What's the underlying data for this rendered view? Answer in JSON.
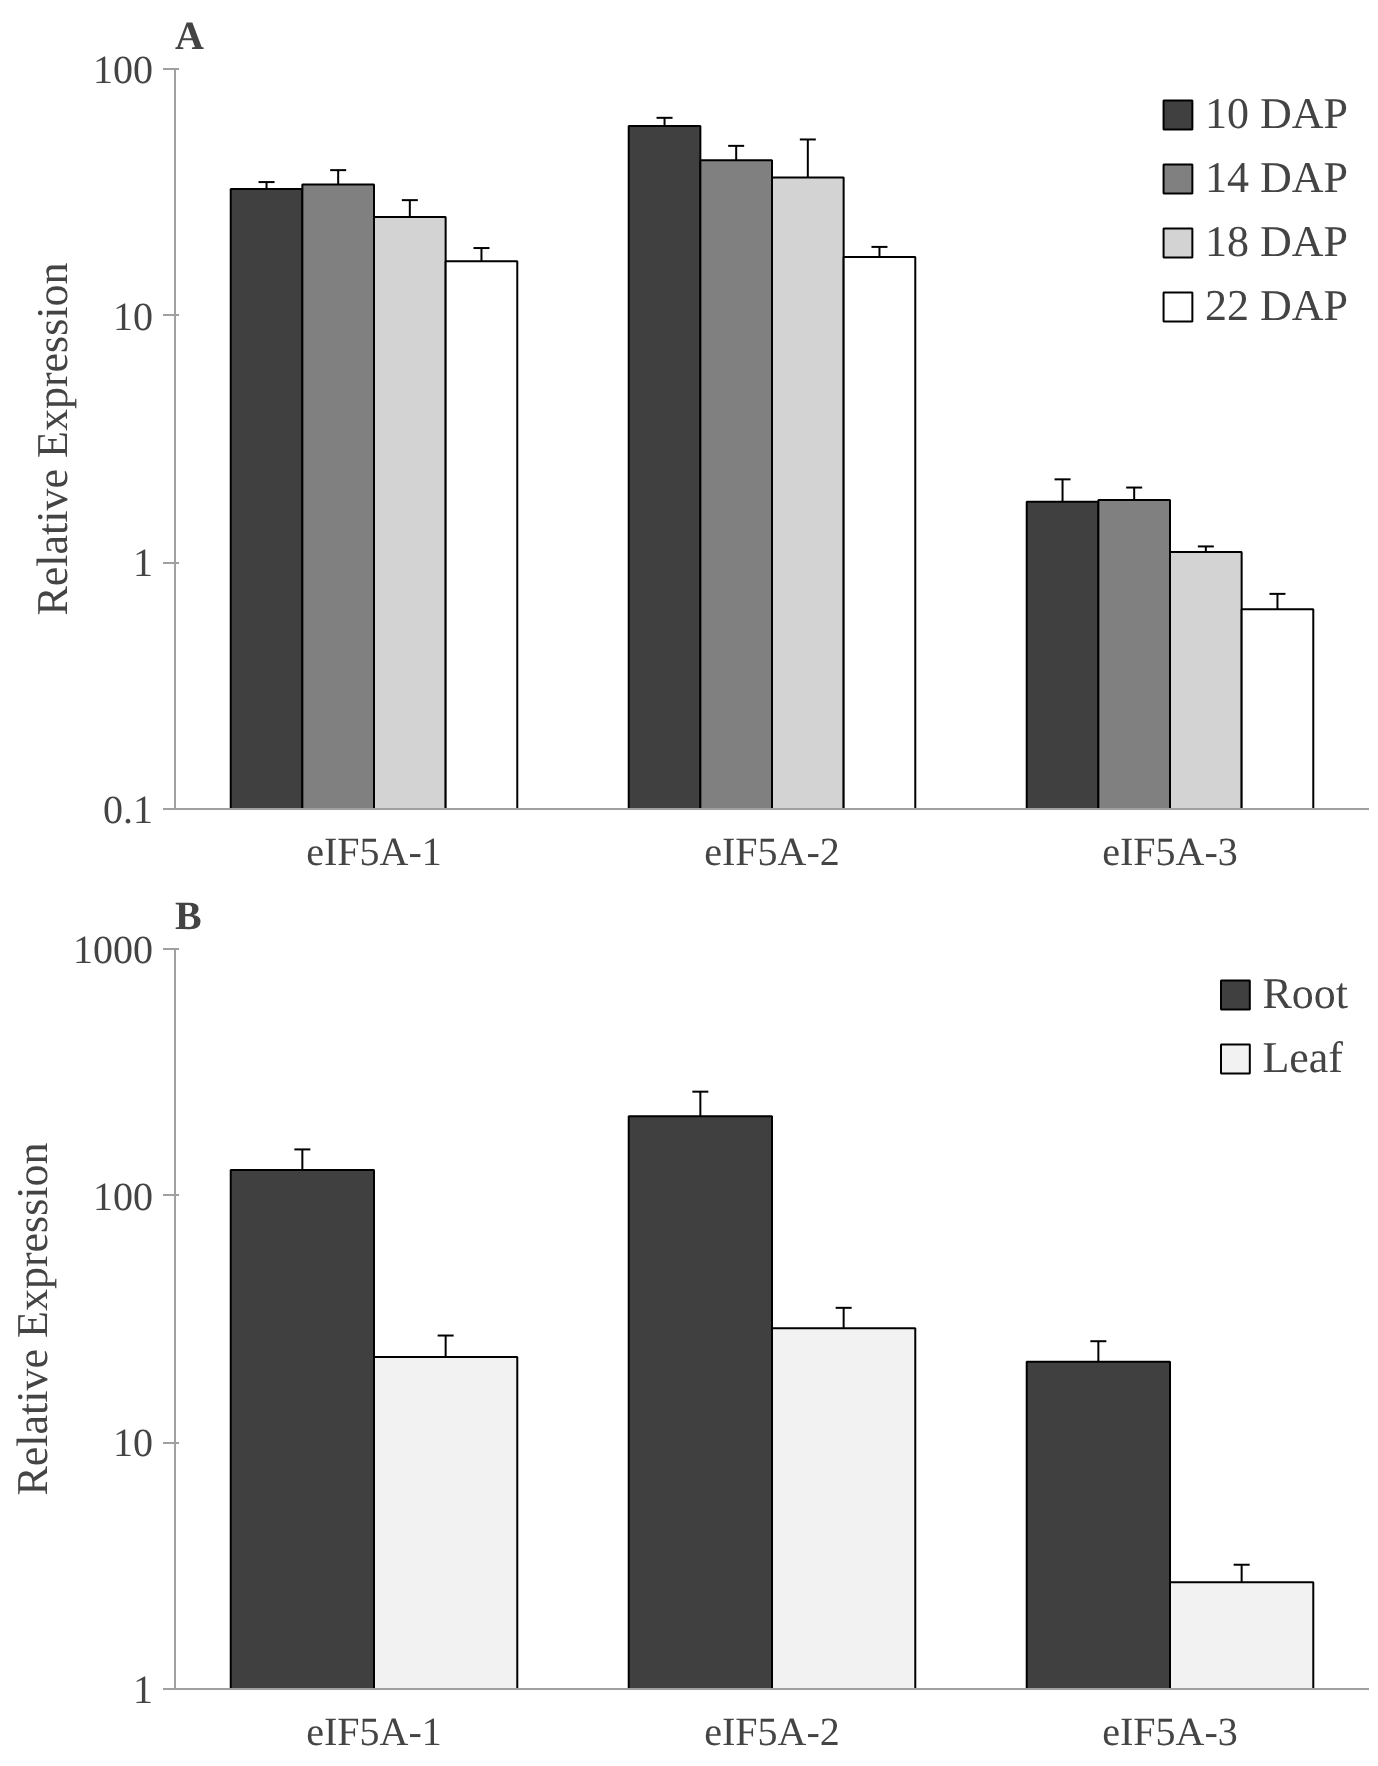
{
  "chart_data": [
    {
      "type": "bar",
      "title": "A",
      "ylabel": "Relative Expression",
      "categories": [
        "eIF5A-1",
        "eIF5A-2",
        "eIF5A-3"
      ],
      "log": "y",
      "ylim": [
        0.1,
        100
      ],
      "yticks": [
        0.1,
        1,
        10,
        100
      ],
      "grid": false,
      "legend": "top right",
      "series": [
        {
          "name": "10 DAP",
          "color": "#404040",
          "values": [
            32.6,
            58.8,
            1.76
          ],
          "errors": [
            [
              32.6,
              34.8
            ],
            [
              58.8,
              63.4
            ],
            [
              1.76,
              2.17
            ]
          ]
        },
        {
          "name": "14 DAP",
          "color": "#808080",
          "values": [
            34.0,
            42.7,
            1.79
          ],
          "errors": [
            [
              34.0,
              38.9
            ],
            [
              42.7,
              48.8
            ],
            [
              1.79,
              2.01
            ]
          ]
        },
        {
          "name": "18 DAP",
          "color": "#d3d3d3",
          "values": [
            25.1,
            36.3,
            1.1
          ],
          "errors": [
            [
              25.1,
              29.4
            ],
            [
              36.3,
              51.8
            ],
            [
              1.1,
              1.16
            ]
          ]
        },
        {
          "name": "22 DAP",
          "color": "#ffffff",
          "values": [
            16.6,
            17.3,
            0.645
          ],
          "errors": [
            [
              16.6,
              18.8
            ],
            [
              17.3,
              19.0
            ],
            [
              0.645,
              0.745
            ]
          ]
        }
      ]
    },
    {
      "type": "bar",
      "title": "B",
      "ylabel": "Relative Expression",
      "categories": [
        "eIF5A-1",
        "eIF5A-2",
        "eIF5A-3"
      ],
      "log": "y",
      "ylim": [
        1,
        1000
      ],
      "yticks": [
        1,
        10,
        100,
        1000
      ],
      "grid": false,
      "legend": "top right",
      "series": [
        {
          "name": "Root",
          "color": "#404040",
          "values": [
            127,
            210,
            21.2
          ],
          "errors": [
            [
              127,
              154
            ],
            [
              210,
              264
            ],
            [
              21.2,
              25.7
            ]
          ]
        },
        {
          "name": "Leaf",
          "color": "#f2f2f2",
          "values": [
            22.2,
            29.0,
            2.71
          ],
          "errors": [
            [
              22.2,
              27.1
            ],
            [
              29.0,
              35.1
            ],
            [
              2.71,
              3.19
            ]
          ]
        }
      ]
    }
  ]
}
